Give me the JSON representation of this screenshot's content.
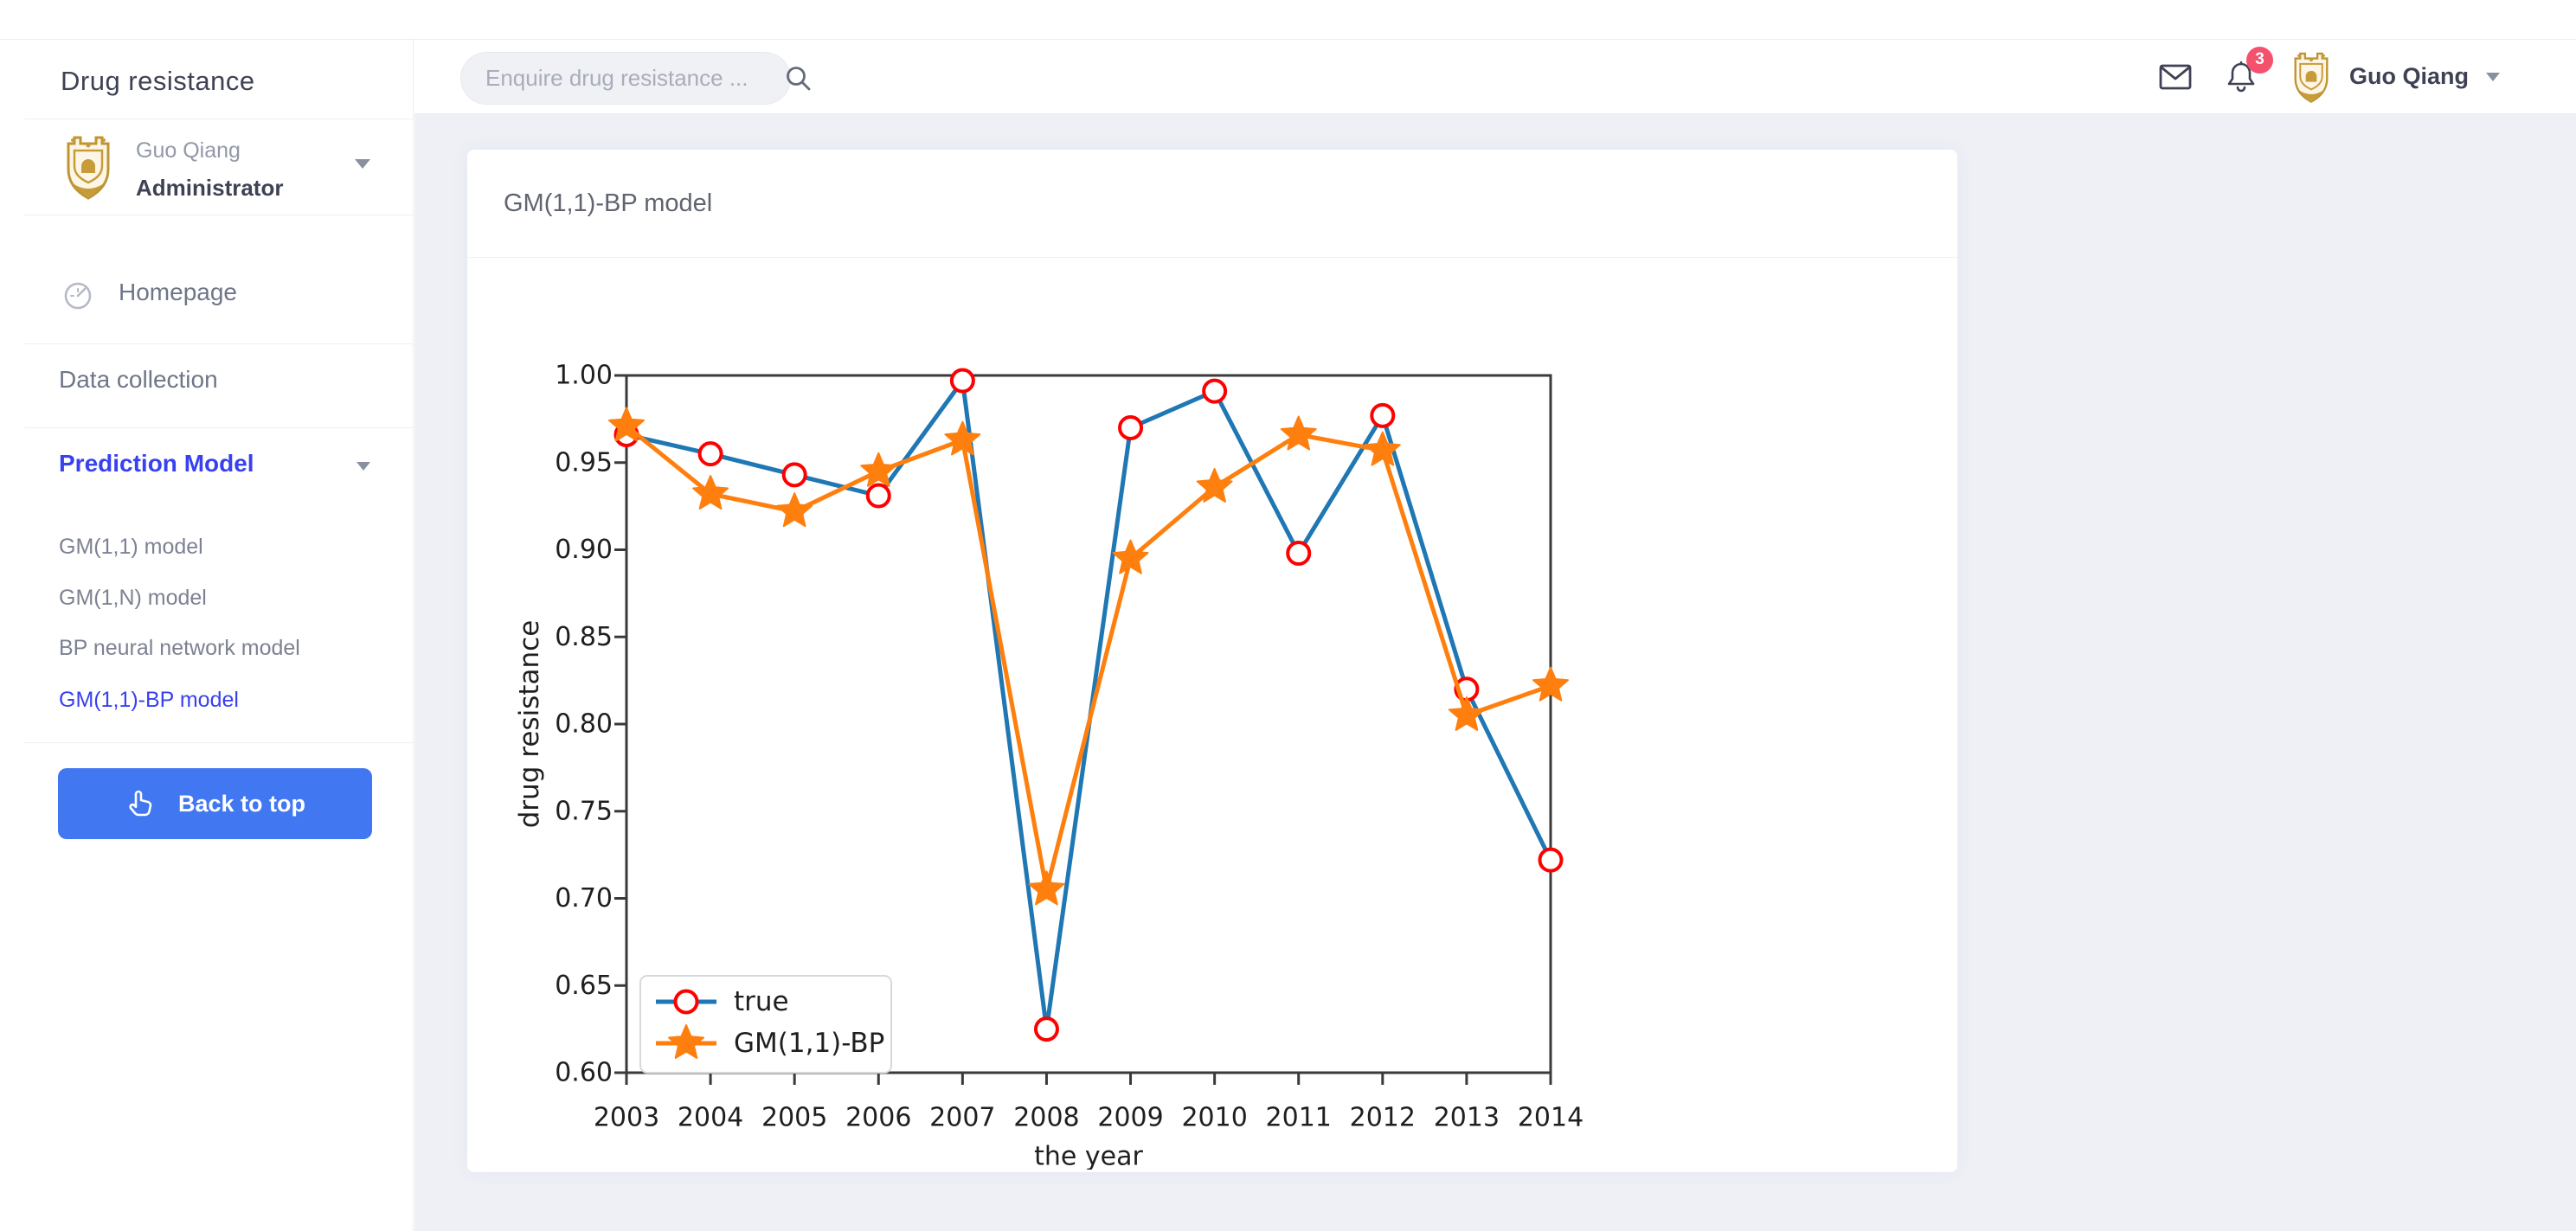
{
  "app": {
    "accent_link_blue": "#3841f0",
    "button_blue": "#4277f2",
    "badge_red": "#f4516c",
    "main_bg": "#eef0f6"
  },
  "sidebar": {
    "title": "Drug resistance",
    "profile": {
      "name": "Guo Qiang",
      "role": "Administrator",
      "avatar": "gold-crest"
    },
    "items": [
      {
        "label": "Homepage",
        "icon": "gauge-icon",
        "active": false
      },
      {
        "label": "Data collection",
        "active": false
      },
      {
        "label": "Prediction Model",
        "active": true,
        "expanded": true
      }
    ],
    "submenu": [
      {
        "label": "GM(1,1) model",
        "active": false
      },
      {
        "label": "GM(1,N) model",
        "active": false
      },
      {
        "label": "BP neural network model",
        "active": false
      },
      {
        "label": "GM(1,1)-BP model",
        "active": true
      }
    ],
    "back_to_top_label": "Back to top"
  },
  "topbar": {
    "search_placeholder": "Enquire drug resistance ...",
    "notification_count": "3",
    "user": {
      "name": "Guo Qiang",
      "avatar": "gold-crest"
    }
  },
  "main": {
    "card_title": "GM(1,1)-BP model"
  },
  "chart_data": {
    "type": "line",
    "title": "",
    "xlabel": "the year",
    "ylabel": "drug resistance",
    "x": [
      2003,
      2004,
      2005,
      2006,
      2007,
      2008,
      2009,
      2010,
      2011,
      2012,
      2013,
      2014
    ],
    "ylim": [
      0.6,
      1.0
    ],
    "yticks": [
      1.0,
      0.95,
      0.9,
      0.85,
      0.8,
      0.75,
      0.7,
      0.65,
      0.6
    ],
    "grid": false,
    "legend_position": "lower left",
    "series": [
      {
        "name": "true",
        "color": "#1f77b4",
        "marker": "circle",
        "marker_edge": "#ff0000",
        "marker_fill": "#ffffff",
        "values": [
          0.966,
          0.955,
          0.943,
          0.931,
          0.997,
          0.625,
          0.97,
          0.991,
          0.898,
          0.977,
          0.82,
          0.722
        ]
      },
      {
        "name": "GM(1,1)-BP",
        "color": "#ff7f0e",
        "marker": "star",
        "marker_edge": "#ff7f0e",
        "marker_fill": "#ff7f0e",
        "values": [
          0.971,
          0.932,
          0.922,
          0.945,
          0.963,
          0.705,
          0.895,
          0.936,
          0.966,
          0.957,
          0.805,
          0.822
        ]
      }
    ]
  }
}
